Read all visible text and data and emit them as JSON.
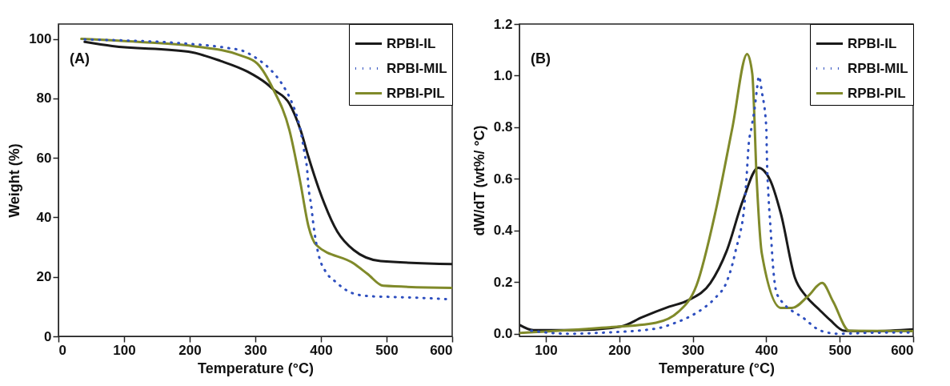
{
  "chart_data": [
    {
      "type": "line",
      "xlabel": "Temperature (°C)",
      "ylabel": "Weight (%)",
      "annotations": [
        "(A)"
      ],
      "xlim": [
        0,
        600
      ],
      "ylim": [
        0,
        105
      ],
      "xticks": [
        0,
        100,
        200,
        300,
        400,
        500,
        600
      ],
      "yticks": [
        0,
        20,
        40,
        60,
        80,
        100
      ],
      "legend": "top right",
      "marker": "none",
      "series": [
        {
          "name": "RPBI-IL",
          "color": "#1a1a1a",
          "line_style": "solid",
          "x": [
            40,
            82,
            198,
            247,
            288,
            317,
            327,
            352,
            369,
            381,
            397,
            425,
            450,
            491,
            600
          ],
          "values": [
            99,
            97.6,
            95.7,
            92.6,
            89,
            85,
            83.1,
            78.2,
            69.3,
            60.3,
            49.5,
            35.2,
            29,
            25.3,
            24.3
          ]
        },
        {
          "name": "RPBI-MIL",
          "color": "#2e4fbf",
          "line_style": "dotted",
          "x": [
            40,
            202,
            256,
            283,
            305,
            323,
            342,
            355,
            364,
            370,
            375,
            379,
            381,
            385,
            388,
            397,
            406,
            423,
            447,
            474,
            501,
            555,
            600
          ],
          "values": [
            99.8,
            98.3,
            97,
            95.8,
            93,
            89.7,
            84.4,
            79,
            73.5,
            68,
            61.6,
            56,
            50.2,
            44.3,
            38.5,
            26.9,
            22.2,
            18.2,
            14.6,
            13.5,
            13.3,
            12.9,
            12.4
          ]
        },
        {
          "name": "RPBI-PIL",
          "color": "#808a2a",
          "line_style": "solid",
          "x": [
            35,
            121,
            204,
            278,
            303,
            327,
            352,
            369,
            381,
            393,
            450,
            471,
            495,
            600
          ],
          "values": [
            100,
            99,
            97.6,
            94.4,
            91.7,
            83.2,
            69.3,
            51.3,
            37,
            30.7,
            24.5,
            21,
            17,
            16.3
          ]
        }
      ]
    },
    {
      "type": "line",
      "xlabel": "Temperature (°C)",
      "ylabel": "dW/dT (wt%/ °C)",
      "annotations": [
        "(B)"
      ],
      "xlim": [
        64,
        600
      ],
      "ylim": [
        -0.01,
        1.2
      ],
      "xticks": [
        100,
        200,
        300,
        400,
        500,
        600
      ],
      "yticks": [
        {
          "value": 0,
          "label": "0.0"
        },
        {
          "value": 0.2,
          "label": "0.2"
        },
        {
          "value": 0.4,
          "label": "0.4"
        },
        {
          "value": 0.6,
          "label": "0.6"
        },
        {
          "value": 0.8,
          "label": "0.8"
        },
        {
          "value": 1,
          "label": "1.0"
        },
        {
          "value": 1.2,
          "label": "1.2"
        }
      ],
      "legend": "top right",
      "marker": "none",
      "series": [
        {
          "name": "RPBI-IL",
          "color": "#1a1a1a",
          "line_style": "solid",
          "x": [
            65,
            83,
            139,
            202,
            231,
            268,
            294,
            324,
            346,
            368,
            389,
            405,
            420,
            439,
            454,
            472,
            487,
            506,
            546,
            600
          ],
          "values": [
            0.033,
            0.014,
            0.014,
            0.028,
            0.064,
            0.105,
            0.13,
            0.197,
            0.32,
            0.515,
            0.643,
            0.597,
            0.464,
            0.217,
            0.146,
            0.094,
            0.053,
            0.012,
            0.01,
            0.017
          ]
        },
        {
          "name": "RPBI-MIL",
          "color": "#2e4fbf",
          "line_style": "dotted",
          "x": [
            80,
            130,
            176,
            250,
            272,
            294,
            315,
            331,
            346,
            354,
            359,
            365,
            369,
            373,
            376,
            380,
            384,
            387,
            390,
            394,
            400,
            401,
            403,
            406,
            409,
            415,
            452,
            474,
            498,
            546,
            600
          ],
          "values": [
            0.012,
            0,
            0.004,
            0.02,
            0.038,
            0.064,
            0.1,
            0.14,
            0.2,
            0.27,
            0.33,
            0.397,
            0.464,
            0.597,
            0.73,
            0.8,
            0.869,
            0.94,
            0.997,
            0.937,
            0.8,
            0.669,
            0.535,
            0.402,
            0.269,
            0.151,
            0.058,
            0.012,
            0,
            0.004,
            0.005
          ]
        },
        {
          "name": "RPBI-PIL",
          "color": "#808a2a",
          "line_style": "solid",
          "x": [
            65,
            176,
            250,
            280,
            305,
            331,
            354,
            374,
            381,
            387,
            394,
            420,
            435,
            457,
            476,
            491,
            513,
            600
          ],
          "values": [
            0.003,
            0.023,
            0.043,
            0.084,
            0.187,
            0.474,
            0.8,
            1.084,
            1.007,
            0.597,
            0.31,
            0.1,
            0.1,
            0.146,
            0.197,
            0.125,
            0.012,
            0.01
          ]
        }
      ]
    }
  ]
}
